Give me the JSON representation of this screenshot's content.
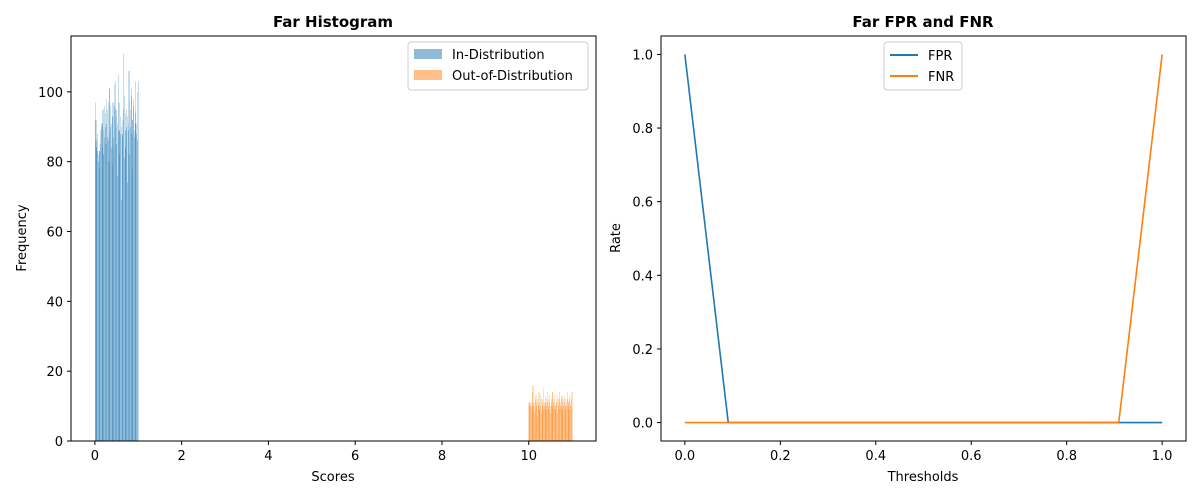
{
  "chart_data": [
    {
      "type": "bar",
      "title": "Far Histogram",
      "xlabel": "Scores",
      "ylabel": "Frequency",
      "xlim": [
        -0.55,
        11.55
      ],
      "ylim": [
        0,
        116
      ],
      "xticks": [
        0,
        2,
        4,
        6,
        8,
        10
      ],
      "yticks": [
        0,
        20,
        40,
        60,
        80,
        100
      ],
      "legend": {
        "placement": "top-right",
        "entries": [
          "In-Distribution",
          "Out-of-Distribution"
        ]
      },
      "series": [
        {
          "name": "In-Distribution",
          "color": "#1f77b4",
          "opacity": 0.5,
          "bin_start": 0.0,
          "bin_width": 0.01,
          "values": [
            92,
            97,
            86,
            84,
            92,
            83,
            88,
            80,
            82,
            78,
            83,
            83,
            85,
            89,
            91,
            90,
            84,
            91,
            95,
            89,
            82,
            96,
            87,
            90,
            94,
            85,
            91,
            98,
            95,
            87,
            86,
            97,
            80,
            101,
            88,
            90,
            96,
            91,
            84,
            79,
            93,
            97,
            84,
            87,
            102,
            96,
            103,
            90,
            95,
            93,
            85,
            91,
            76,
            89,
            105,
            97,
            89,
            82,
            88,
            93,
            69,
            90,
            87,
            88,
            92,
            95,
            111,
            99,
            81,
            94,
            84,
            89,
            95,
            90,
            74,
            93,
            89,
            91,
            106,
            97,
            82,
            95,
            90,
            99,
            101,
            88,
            92,
            78,
            96,
            98,
            89,
            87,
            103,
            91,
            94,
            88,
            91,
            100,
            86,
            103
          ]
        },
        {
          "name": "Out-of-Distribution",
          "color": "#ff7f0e",
          "opacity": 0.5,
          "bin_start": 10.0,
          "bin_width": 0.01,
          "values": [
            11,
            10,
            11,
            10,
            11,
            9,
            11,
            14,
            10,
            16,
            11,
            10,
            8,
            11,
            12,
            9,
            13,
            11,
            10,
            7,
            12,
            10,
            11,
            14,
            9,
            11,
            13,
            10,
            12,
            8,
            11,
            10,
            12,
            15,
            9,
            11,
            10,
            13,
            11,
            9,
            12,
            10,
            14,
            11,
            10,
            12,
            9,
            11,
            13,
            10,
            8,
            12,
            11,
            10,
            14,
            9,
            11,
            12,
            10,
            13,
            11,
            9,
            10,
            12,
            11,
            8,
            13,
            10,
            11,
            12,
            9,
            14,
            10,
            11,
            12,
            10,
            13,
            9,
            11,
            10,
            12,
            11,
            13,
            10,
            9,
            12,
            10,
            11,
            14,
            12,
            10,
            11,
            9,
            12,
            13,
            10,
            11,
            12,
            9,
            14
          ]
        }
      ]
    },
    {
      "type": "line",
      "title": "Far FPR and FNR",
      "xlabel": "Thresholds",
      "ylabel": "Rate",
      "xlim": [
        -0.05,
        1.05
      ],
      "ylim": [
        -0.05,
        1.05
      ],
      "xticks": [
        0.0,
        0.2,
        0.4,
        0.6,
        0.8,
        1.0
      ],
      "yticks": [
        0.0,
        0.2,
        0.4,
        0.6,
        0.8,
        1.0
      ],
      "legend": {
        "placement": "upper center",
        "entries": [
          "FPR",
          "FNR"
        ]
      },
      "series": [
        {
          "name": "FPR",
          "color": "#1f77b4",
          "x": [
            0.0,
            0.0909,
            0.1818,
            0.2727,
            0.3636,
            0.4545,
            0.5455,
            0.6364,
            0.7273,
            0.8182,
            0.9091,
            1.0
          ],
          "y": [
            1.0,
            0.0,
            0.0,
            0.0,
            0.0,
            0.0,
            0.0,
            0.0,
            0.0,
            0.0,
            0.0,
            0.0
          ]
        },
        {
          "name": "FNR",
          "color": "#ff7f0e",
          "x": [
            0.0,
            0.0909,
            0.1818,
            0.2727,
            0.3636,
            0.4545,
            0.5455,
            0.6364,
            0.7273,
            0.8182,
            0.9091,
            1.0
          ],
          "y": [
            0.0,
            0.0,
            0.0,
            0.0,
            0.0,
            0.0,
            0.0,
            0.0,
            0.0,
            0.0,
            0.0,
            1.0
          ]
        }
      ]
    }
  ]
}
